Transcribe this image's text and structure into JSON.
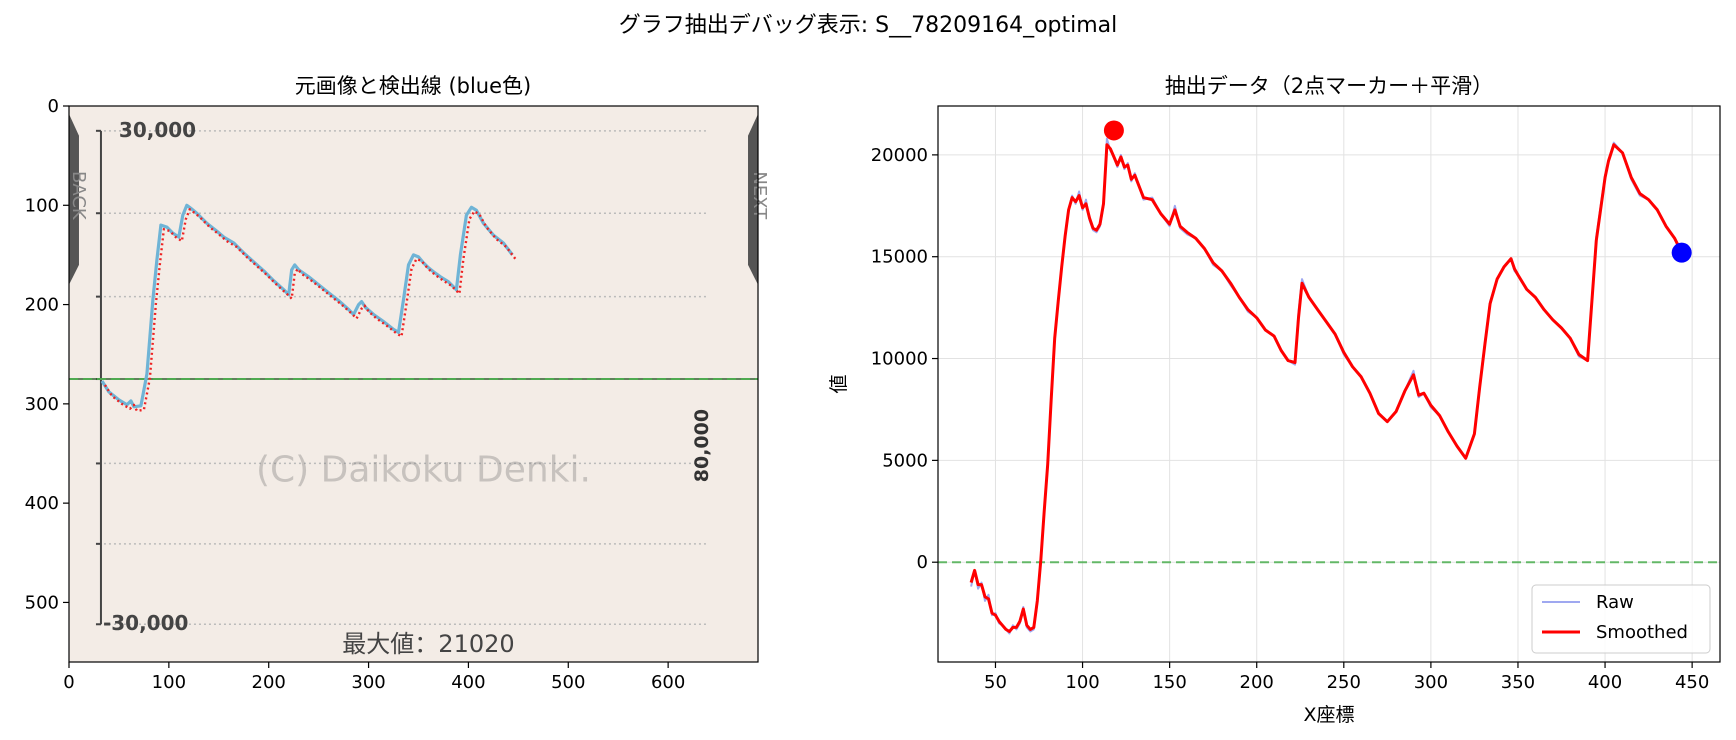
{
  "figure": {
    "suptitle": "グラフ抽出デバッグ表示: S__78209164_optimal"
  },
  "chart_data": [
    {
      "type": "image",
      "title": "元画像と検出線 (blue色)",
      "xlim": [
        0,
        690
      ],
      "ylim": [
        560,
        0
      ],
      "xticks": [
        0,
        100,
        200,
        300,
        400,
        500,
        600
      ],
      "yticks": [
        0,
        100,
        200,
        300,
        400,
        500
      ],
      "embedded_image": {
        "label_top": "30,000",
        "label_bottom": "-30,000",
        "label_right": "80,000",
        "max_text": "最大値：21020",
        "watermark": "(C) Daikoku Denki.",
        "side_left": "BACK",
        "side_right": "NEXT",
        "background_color": "#f3ece6",
        "zero_line_y": 275,
        "detected_line_color": "#6fb4d6",
        "overlay_line_color": "#ee2222",
        "zero_line_color": "#4caf50",
        "trace": [
          [
            33,
            277
          ],
          [
            40,
            288
          ],
          [
            50,
            296
          ],
          [
            58,
            301
          ],
          [
            62,
            297
          ],
          [
            65,
            303
          ],
          [
            72,
            302
          ],
          [
            78,
            270
          ],
          [
            84,
            195
          ],
          [
            88,
            155
          ],
          [
            92,
            120
          ],
          [
            98,
            122
          ],
          [
            104,
            128
          ],
          [
            110,
            132
          ],
          [
            114,
            110
          ],
          [
            118,
            100
          ],
          [
            122,
            103
          ],
          [
            128,
            108
          ],
          [
            138,
            118
          ],
          [
            148,
            126
          ],
          [
            155,
            132
          ],
          [
            165,
            138
          ],
          [
            175,
            148
          ],
          [
            185,
            157
          ],
          [
            195,
            166
          ],
          [
            205,
            176
          ],
          [
            215,
            185
          ],
          [
            220,
            190
          ],
          [
            223,
            165
          ],
          [
            226,
            160
          ],
          [
            230,
            165
          ],
          [
            240,
            172
          ],
          [
            250,
            180
          ],
          [
            260,
            188
          ],
          [
            270,
            196
          ],
          [
            280,
            205
          ],
          [
            285,
            210
          ],
          [
            290,
            200
          ],
          [
            293,
            197
          ],
          [
            297,
            203
          ],
          [
            305,
            210
          ],
          [
            315,
            217
          ],
          [
            325,
            225
          ],
          [
            330,
            228
          ],
          [
            335,
            195
          ],
          [
            340,
            160
          ],
          [
            345,
            150
          ],
          [
            350,
            152
          ],
          [
            355,
            158
          ],
          [
            360,
            163
          ],
          [
            365,
            167
          ],
          [
            372,
            172
          ],
          [
            380,
            177
          ],
          [
            388,
            185
          ],
          [
            392,
            150
          ],
          [
            398,
            110
          ],
          [
            403,
            102
          ],
          [
            408,
            105
          ],
          [
            415,
            118
          ],
          [
            425,
            130
          ],
          [
            435,
            138
          ],
          [
            444,
            150
          ]
        ]
      }
    },
    {
      "type": "line",
      "title": "抽出データ（2点マーカー＋平滑）",
      "xlabel": "X座標",
      "ylabel": "値",
      "xlim": [
        17,
        466
      ],
      "ylim": [
        -4900,
        22400
      ],
      "xticks": [
        50,
        100,
        150,
        200,
        250,
        300,
        350,
        400,
        450
      ],
      "yticks": [
        0,
        5000,
        10000,
        15000,
        20000
      ],
      "grid": true,
      "zero_line": {
        "y": 0,
        "color": "#4caf50"
      },
      "legend": {
        "position": "bottom-right",
        "entries": [
          "Raw",
          "Smoothed"
        ]
      },
      "series": [
        {
          "name": "Raw",
          "color": "#9fa8f0",
          "x": [
            36,
            38,
            40,
            42,
            44,
            46,
            48,
            50,
            52,
            54,
            56,
            58,
            60,
            62,
            64,
            66,
            68,
            70,
            72,
            74,
            76,
            78,
            80,
            82,
            84,
            86,
            88,
            90,
            92,
            94,
            96,
            98,
            100,
            102,
            104,
            106,
            108,
            110,
            112,
            114,
            116,
            118,
            120,
            122,
            124,
            126,
            128,
            130,
            135,
            140,
            145,
            150,
            153,
            156,
            160,
            165,
            170,
            175,
            180,
            185,
            190,
            195,
            200,
            205,
            210,
            214,
            218,
            222,
            224,
            226,
            230,
            235,
            240,
            245,
            250,
            255,
            260,
            265,
            270,
            275,
            280,
            285,
            290,
            293,
            296,
            300,
            305,
            310,
            315,
            320,
            325,
            328,
            331,
            334,
            338,
            342,
            346,
            348,
            350,
            355,
            360,
            365,
            370,
            375,
            380,
            385,
            390,
            395,
            400,
            402,
            405,
            410,
            415,
            420,
            425,
            430,
            435,
            440,
            444
          ],
          "values": [
            -1200,
            -400,
            -1300,
            -1000,
            -1900,
            -1600,
            -2600,
            -2500,
            -3000,
            -3100,
            -3300,
            -3500,
            -3100,
            -3300,
            -3000,
            -2200,
            -3200,
            -3400,
            -3300,
            -2000,
            0,
            2400,
            4700,
            8000,
            11000,
            12800,
            14500,
            16000,
            17300,
            18000,
            17600,
            18200,
            17300,
            17800,
            16800,
            16300,
            16200,
            16500,
            17500,
            20800,
            20200,
            19900,
            19400,
            20000,
            19300,
            19600,
            18700,
            19100,
            17800,
            17900,
            17100,
            16500,
            17500,
            16400,
            16100,
            15900,
            15400,
            14600,
            14300,
            13600,
            13000,
            12300,
            12000,
            11400,
            11100,
            10400,
            9900,
            9700,
            12300,
            13900,
            13000,
            12400,
            11800,
            11200,
            10200,
            9600,
            9100,
            8300,
            7300,
            6900,
            7400,
            8400,
            9400,
            8100,
            8300,
            7600,
            7200,
            6400,
            5700,
            5100,
            6300,
            8700,
            10800,
            12800,
            13900,
            14500,
            14900,
            14300,
            14100,
            13400,
            13000,
            12400,
            11900,
            11500,
            11000,
            10100,
            9900,
            16000,
            19000,
            19700,
            20600,
            20100,
            18800,
            18000,
            17800,
            17300,
            16500,
            15900,
            15200
          ]
        },
        {
          "name": "Smoothed",
          "color": "#ff0000",
          "x": [
            36,
            38,
            40,
            42,
            44,
            46,
            48,
            50,
            52,
            54,
            56,
            58,
            60,
            62,
            64,
            66,
            68,
            70,
            72,
            74,
            76,
            78,
            80,
            82,
            84,
            86,
            88,
            90,
            92,
            94,
            96,
            98,
            100,
            102,
            104,
            106,
            108,
            110,
            112,
            114,
            116,
            118,
            120,
            122,
            124,
            126,
            128,
            130,
            135,
            140,
            145,
            150,
            153,
            156,
            160,
            165,
            170,
            175,
            180,
            185,
            190,
            195,
            200,
            205,
            210,
            214,
            218,
            222,
            224,
            226,
            230,
            235,
            240,
            245,
            250,
            255,
            260,
            265,
            270,
            275,
            280,
            285,
            290,
            293,
            296,
            300,
            305,
            310,
            315,
            320,
            325,
            328,
            331,
            334,
            338,
            342,
            346,
            348,
            350,
            355,
            360,
            365,
            370,
            375,
            380,
            385,
            390,
            395,
            400,
            402,
            405,
            410,
            415,
            420,
            425,
            430,
            435,
            440,
            444
          ],
          "values": [
            -1000,
            -400,
            -1100,
            -1100,
            -1700,
            -1800,
            -2500,
            -2600,
            -2900,
            -3100,
            -3300,
            -3400,
            -3200,
            -3200,
            -2900,
            -2300,
            -3100,
            -3300,
            -3200,
            -1900,
            100,
            2500,
            4800,
            8000,
            11000,
            12800,
            14500,
            16000,
            17300,
            17900,
            17700,
            18000,
            17400,
            17600,
            16900,
            16400,
            16300,
            16600,
            17600,
            20500,
            20300,
            19900,
            19500,
            19900,
            19400,
            19500,
            18800,
            19000,
            17900,
            17800,
            17100,
            16600,
            17300,
            16500,
            16200,
            15900,
            15400,
            14700,
            14300,
            13700,
            13000,
            12400,
            12000,
            11400,
            11100,
            10400,
            9900,
            9800,
            12000,
            13700,
            13000,
            12400,
            11800,
            11200,
            10300,
            9600,
            9100,
            8300,
            7300,
            6900,
            7400,
            8400,
            9200,
            8200,
            8300,
            7700,
            7200,
            6400,
            5700,
            5100,
            6300,
            8600,
            10700,
            12700,
            13900,
            14500,
            14900,
            14400,
            14100,
            13400,
            13000,
            12400,
            11900,
            11500,
            11000,
            10200,
            9900,
            15800,
            18900,
            19700,
            20500,
            20100,
            18900,
            18100,
            17800,
            17300,
            16500,
            15900,
            15200
          ]
        }
      ],
      "markers": [
        {
          "x": 118,
          "y": 21200,
          "color": "#ff0000"
        },
        {
          "x": 444,
          "y": 15200,
          "color": "#0000ff"
        }
      ]
    }
  ]
}
